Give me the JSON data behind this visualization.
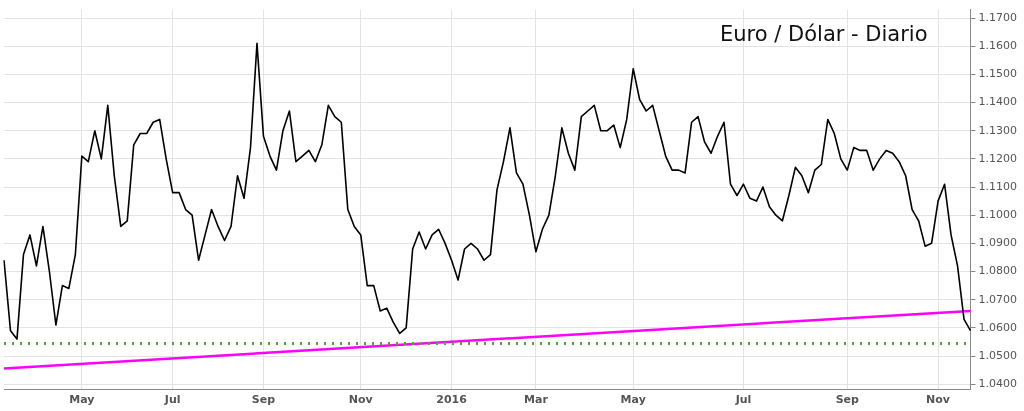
{
  "chart_data": {
    "type": "line",
    "title": "Euro / Dólar - Diario",
    "categories": [
      null,
      null,
      null,
      null,
      null,
      null,
      null,
      null,
      null,
      null,
      null,
      null,
      "May",
      null,
      null,
      null,
      null,
      null,
      null,
      null,
      null,
      null,
      null,
      null,
      null,
      null,
      "Jul",
      null,
      null,
      null,
      null,
      null,
      null,
      null,
      null,
      null,
      null,
      null,
      null,
      null,
      "Sep",
      null,
      null,
      null,
      null,
      null,
      null,
      null,
      null,
      null,
      null,
      null,
      null,
      null,
      null,
      "Nov",
      null,
      null,
      null,
      null,
      null,
      null,
      null,
      null,
      null,
      null,
      null,
      null,
      null,
      "2016",
      null,
      null,
      null,
      null,
      null,
      null,
      null,
      null,
      null,
      null,
      null,
      null,
      "Mar",
      null,
      null,
      null,
      null,
      null,
      null,
      null,
      null,
      null,
      null,
      null,
      null,
      null,
      null,
      "May",
      null,
      null,
      null,
      null,
      null,
      null,
      null,
      null,
      null,
      null,
      null,
      null,
      null,
      null,
      null,
      null,
      "Jul",
      null,
      null,
      null,
      null,
      null,
      null,
      null,
      null,
      null,
      null,
      null,
      null,
      null,
      null,
      null,
      "Sep",
      null,
      null,
      null,
      null,
      null,
      null,
      null,
      null,
      null,
      null,
      null,
      null,
      null,
      "Nov",
      null,
      null,
      null,
      null,
      null
    ],
    "series": [
      {
        "color": "#000000",
        "values": [
          1.084,
          1.059,
          1.056,
          1.086,
          1.093,
          1.082,
          1.096,
          1.08,
          1.061,
          1.075,
          1.074,
          1.086,
          1.121,
          1.119,
          1.13,
          1.12,
          1.139,
          1.114,
          1.096,
          1.098,
          1.125,
          1.129,
          1.129,
          1.133,
          1.134,
          1.12,
          1.108,
          1.108,
          1.102,
          1.1,
          1.084,
          1.093,
          1.102,
          1.096,
          1.091,
          1.096,
          1.114,
          1.106,
          1.124,
          1.161,
          1.128,
          1.121,
          1.116,
          1.13,
          1.137,
          1.119,
          1.121,
          1.123,
          1.119,
          1.125,
          1.139,
          1.135,
          1.133,
          1.102,
          1.096,
          1.093,
          1.075,
          1.075,
          1.066,
          1.067,
          1.062,
          1.058,
          1.06,
          1.088,
          1.094,
          1.088,
          1.093,
          1.095,
          1.09,
          1.084,
          1.077,
          1.088,
          1.09,
          1.088,
          1.084,
          1.086,
          1.109,
          1.119,
          1.131,
          1.115,
          1.111,
          1.1,
          1.087,
          1.095,
          1.1,
          1.114,
          1.131,
          1.122,
          1.116,
          1.135,
          1.137,
          1.139,
          1.13,
          1.13,
          1.132,
          1.124,
          1.134,
          1.152,
          1.141,
          1.137,
          1.139,
          1.13,
          1.121,
          1.116,
          1.116,
          1.115,
          1.133,
          1.135,
          1.126,
          1.122,
          1.128,
          1.133,
          1.111,
          1.107,
          1.111,
          1.106,
          1.105,
          1.11,
          1.103,
          1.1,
          1.098,
          1.107,
          1.117,
          1.114,
          1.108,
          1.116,
          1.118,
          1.134,
          1.129,
          1.12,
          1.116,
          1.124,
          1.123,
          1.123,
          1.116,
          1.12,
          1.123,
          1.122,
          1.119,
          1.114,
          1.102,
          1.098,
          1.089,
          1.09,
          1.105,
          1.111,
          1.093,
          1.082,
          1.063,
          1.059
        ]
      },
      {
        "type": "line",
        "color": "#ff00ff",
        "values": [
          1.0456,
          null,
          null,
          null,
          null,
          null,
          null,
          null,
          null,
          null,
          null,
          null,
          null,
          null,
          null,
          null,
          null,
          null,
          null,
          null,
          null,
          null,
          null,
          null,
          null,
          null,
          null,
          null,
          null,
          null,
          null,
          null,
          null,
          null,
          null,
          null,
          null,
          null,
          null,
          null,
          null,
          null,
          null,
          null,
          null,
          null,
          null,
          null,
          null,
          null,
          null,
          null,
          null,
          null,
          null,
          null,
          null,
          null,
          null,
          null,
          null,
          null,
          null,
          null,
          null,
          null,
          null,
          null,
          null,
          null,
          null,
          null,
          null,
          null,
          null,
          null,
          null,
          null,
          null,
          null,
          null,
          null,
          null,
          null,
          null,
          null,
          null,
          null,
          null,
          null,
          null,
          null,
          null,
          null,
          null,
          null,
          null,
          null,
          null,
          null,
          null,
          null,
          null,
          null,
          null,
          null,
          null,
          null,
          null,
          null,
          null,
          null,
          null,
          null,
          null,
          null,
          null,
          null,
          null,
          null,
          null,
          null,
          null,
          null,
          null,
          null,
          null,
          null,
          null,
          null,
          null,
          null,
          null,
          null,
          null,
          null,
          null,
          null,
          null,
          null,
          null,
          null,
          null,
          null,
          null,
          null,
          null,
          null,
          null,
          1.066
        ]
      }
    ],
    "ref_lines": [
      {
        "axis": "y",
        "value": 1.0544,
        "color": "#5b9e3a",
        "line_style": "dotted"
      }
    ],
    "ylim": [
      1.038,
      1.173
    ],
    "yticks": [
      {
        "value": 1.04,
        "label": "1.0400"
      },
      {
        "value": 1.05,
        "label": "1.0500"
      },
      {
        "value": 1.06,
        "label": "1.0600"
      },
      {
        "value": 1.07,
        "label": "1.0700"
      },
      {
        "value": 1.08,
        "label": "1.0800"
      },
      {
        "value": 1.09,
        "label": "1.0900"
      },
      {
        "value": 1.1,
        "label": "1.1000"
      },
      {
        "value": 1.11,
        "label": "1.1100"
      },
      {
        "value": 1.12,
        "label": "1.1200"
      },
      {
        "value": 1.13,
        "label": "1.1300"
      },
      {
        "value": 1.14,
        "label": "1.1400"
      },
      {
        "value": 1.15,
        "label": "1.1500"
      },
      {
        "value": 1.16,
        "label": "1.1600"
      },
      {
        "value": 1.17,
        "label": "1.1700"
      }
    ],
    "grid": true,
    "legend": false,
    "marker": "none",
    "line_style": "solid"
  }
}
